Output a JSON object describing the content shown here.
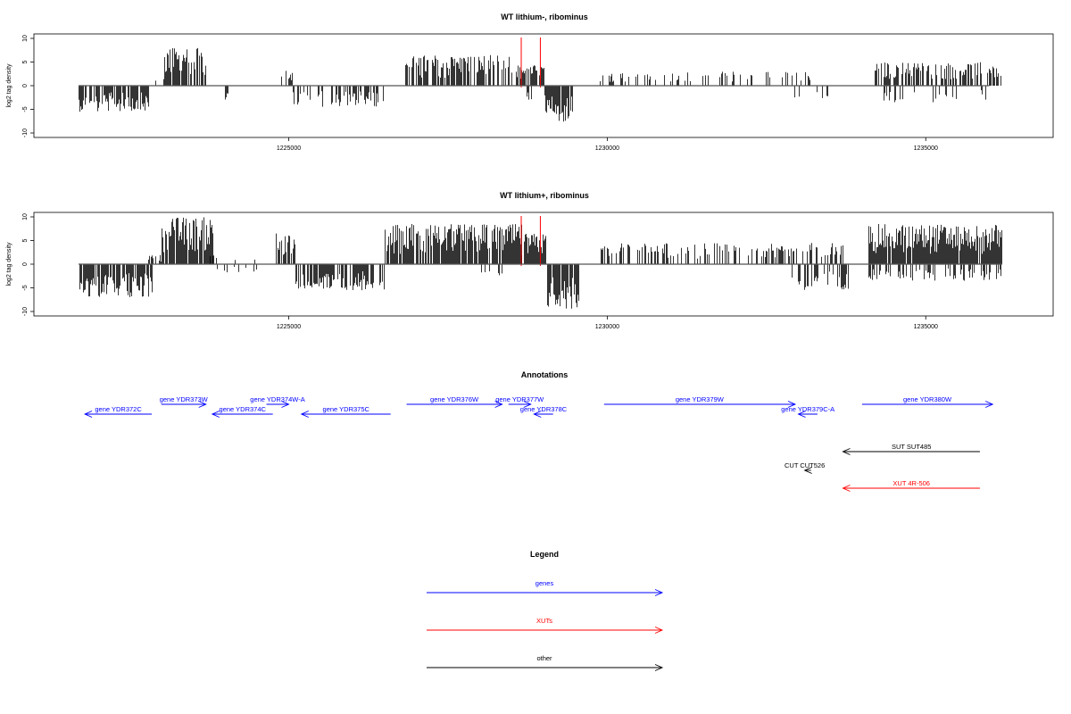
{
  "chart_data": [
    {
      "type": "bar",
      "title": "WT lithium-, ribominus",
      "ylabel": "log2 tag density",
      "xlim": [
        1221000,
        1237000
      ],
      "ylim": [
        -10,
        10
      ],
      "x_ticks": [
        1225000,
        1230000,
        1235000
      ],
      "x_tick_labels": [
        "1225000",
        "1230000",
        "1235000"
      ],
      "y_ticks": [
        10,
        5,
        0,
        -5,
        -10
      ],
      "y_tick_labels": [
        "10",
        "5",
        "0",
        "-5",
        "-10"
      ],
      "highlight_x": [
        1228650,
        1228950
      ],
      "highlight_color": "#ff0000",
      "segments": [
        {
          "start": 1221700,
          "end": 1222800,
          "sign": -1,
          "peak": 5.5,
          "density": 0.75
        },
        {
          "start": 1222850,
          "end": 1223050,
          "sign": 1,
          "peak": 1.5,
          "density": 0.2
        },
        {
          "start": 1223050,
          "end": 1223700,
          "sign": 1,
          "peak": 8,
          "density": 0.75
        },
        {
          "start": 1224000,
          "end": 1224050,
          "sign": -1,
          "peak": 3.5,
          "density": 1
        },
        {
          "start": 1224850,
          "end": 1225050,
          "sign": 1,
          "peak": 3.5,
          "density": 0.6
        },
        {
          "start": 1225050,
          "end": 1226500,
          "sign": -1,
          "peak": 4.5,
          "density": 0.45
        },
        {
          "start": 1226800,
          "end": 1228500,
          "sign": 1,
          "peak": 6.5,
          "density": 0.65
        },
        {
          "start": 1228550,
          "end": 1229000,
          "sign": 1,
          "peak": 4.5,
          "density": 0.8
        },
        {
          "start": 1228700,
          "end": 1228900,
          "sign": -1,
          "peak": 3,
          "density": 0.5
        },
        {
          "start": 1229000,
          "end": 1229450,
          "sign": -1,
          "peak": 8,
          "density": 0.85
        },
        {
          "start": 1229850,
          "end": 1233200,
          "sign": 1,
          "peak": 3,
          "density": 0.22
        },
        {
          "start": 1232900,
          "end": 1233600,
          "sign": -1,
          "peak": 3.5,
          "density": 0.2
        },
        {
          "start": 1234200,
          "end": 1236200,
          "sign": 1,
          "peak": 5,
          "density": 0.55
        },
        {
          "start": 1234300,
          "end": 1236000,
          "sign": -1,
          "peak": 3.5,
          "density": 0.2
        }
      ]
    },
    {
      "type": "bar",
      "title": "WT lithium+, ribominus",
      "ylabel": "log2 tag density",
      "xlim": [
        1221000,
        1237000
      ],
      "ylim": [
        -10,
        10
      ],
      "x_ticks": [
        1225000,
        1230000,
        1235000
      ],
      "x_tick_labels": [
        "1225000",
        "1230000",
        "1235000"
      ],
      "y_ticks": [
        10,
        5,
        0,
        -5,
        -10
      ],
      "y_tick_labels": [
        "10",
        "5",
        "0",
        "-5",
        "-10"
      ],
      "highlight_x": [
        1228650,
        1228950
      ],
      "highlight_color": "#ff0000",
      "segments": [
        {
          "start": 1221700,
          "end": 1222850,
          "sign": -1,
          "peak": 7,
          "density": 0.85
        },
        {
          "start": 1222800,
          "end": 1223000,
          "sign": 1,
          "peak": 2,
          "density": 0.4
        },
        {
          "start": 1223000,
          "end": 1223800,
          "sign": 1,
          "peak": 10,
          "density": 0.85
        },
        {
          "start": 1223700,
          "end": 1224600,
          "sign": 1,
          "peak": 2.5,
          "density": 0.12
        },
        {
          "start": 1223700,
          "end": 1224600,
          "sign": -1,
          "peak": 2,
          "density": 0.12
        },
        {
          "start": 1224800,
          "end": 1225100,
          "sign": 1,
          "peak": 6.5,
          "density": 0.75
        },
        {
          "start": 1225100,
          "end": 1226500,
          "sign": -1,
          "peak": 5.5,
          "density": 0.65
        },
        {
          "start": 1226500,
          "end": 1228650,
          "sign": 1,
          "peak": 8.5,
          "density": 0.85
        },
        {
          "start": 1228000,
          "end": 1228600,
          "sign": -1,
          "peak": 2.5,
          "density": 0.25
        },
        {
          "start": 1228650,
          "end": 1229050,
          "sign": 1,
          "peak": 6.5,
          "density": 0.8
        },
        {
          "start": 1229050,
          "end": 1229550,
          "sign": -1,
          "peak": 9.5,
          "density": 0.9
        },
        {
          "start": 1229850,
          "end": 1233700,
          "sign": 1,
          "peak": 4.5,
          "density": 0.4
        },
        {
          "start": 1232900,
          "end": 1233800,
          "sign": -1,
          "peak": 5.5,
          "density": 0.45
        },
        {
          "start": 1234100,
          "end": 1236200,
          "sign": 1,
          "peak": 8.5,
          "density": 0.95
        },
        {
          "start": 1234100,
          "end": 1236200,
          "sign": -1,
          "peak": 3.5,
          "density": 0.35
        }
      ]
    }
  ],
  "annotations": {
    "title": "Annotations",
    "features": [
      {
        "label": "gene YDR372C",
        "start": 1221800,
        "end": 1222850,
        "strand": "-",
        "color": "#0000ff",
        "row": 1
      },
      {
        "label": "gene YDR373W",
        "start": 1223000,
        "end": 1223700,
        "strand": "+",
        "color": "#0000ff",
        "row": 0
      },
      {
        "label": "gene YDR374C",
        "start": 1223800,
        "end": 1224750,
        "strand": "-",
        "color": "#0000ff",
        "row": 1
      },
      {
        "label": "gene YDR374W-A",
        "start": 1224650,
        "end": 1225000,
        "strand": "+",
        "color": "#0000ff",
        "row": 0
      },
      {
        "label": "gene YDR375C",
        "start": 1225200,
        "end": 1226600,
        "strand": "-",
        "color": "#0000ff",
        "row": 1
      },
      {
        "label": "gene YDR376W",
        "start": 1226850,
        "end": 1228350,
        "strand": "+",
        "color": "#0000ff",
        "row": 0
      },
      {
        "label": "gene YDR377W",
        "start": 1228450,
        "end": 1228800,
        "strand": "+",
        "color": "#0000ff",
        "row": 0
      },
      {
        "label": "gene YDR378C",
        "start": 1228850,
        "end": 1229150,
        "strand": "-",
        "color": "#0000ff",
        "row": 1
      },
      {
        "label": "gene YDR379W",
        "start": 1229950,
        "end": 1232950,
        "strand": "+",
        "color": "#0000ff",
        "row": 0
      },
      {
        "label": "gene YDR379C-A",
        "start": 1233000,
        "end": 1233300,
        "strand": "-",
        "color": "#0000ff",
        "row": 1
      },
      {
        "label": "gene YDR380W",
        "start": 1234000,
        "end": 1236050,
        "strand": "+",
        "color": "#0000ff",
        "row": 0
      },
      {
        "label": "SUT SUT485",
        "start": 1233700,
        "end": 1235850,
        "strand": "-",
        "color": "#000000",
        "row": 2
      },
      {
        "label": "CUT CUT526",
        "start": 1233100,
        "end": 1233200,
        "strand": "-",
        "color": "#000000",
        "row": 3
      },
      {
        "label": "XUT 4R-506",
        "start": 1233700,
        "end": 1235850,
        "strand": "-",
        "color": "#ff0000",
        "row": 4
      }
    ]
  },
  "legend": {
    "title": "Legend",
    "items": [
      {
        "label": "genes",
        "color": "#0000ff"
      },
      {
        "label": "XUTs",
        "color": "#ff0000"
      },
      {
        "label": "other",
        "color": "#000000"
      }
    ]
  }
}
